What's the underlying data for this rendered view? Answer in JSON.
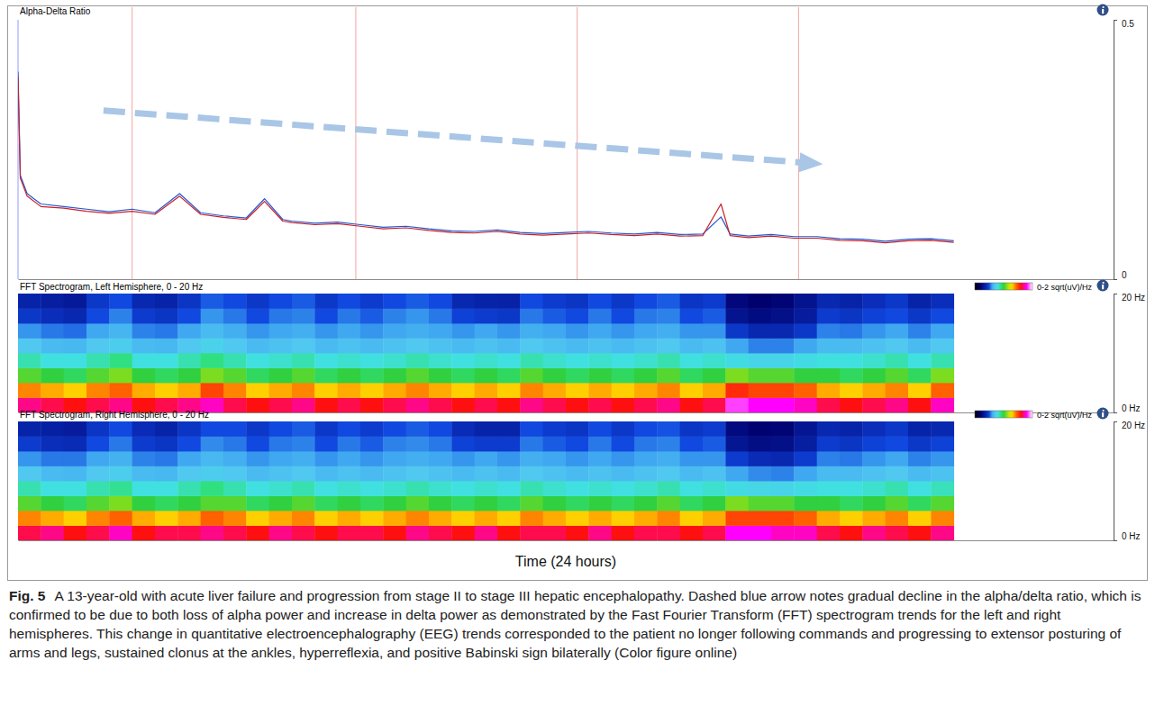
{
  "chart_data": [
    {
      "type": "line",
      "title": "Alpha-Delta Ratio",
      "x": [
        0,
        0.05,
        0.2,
        0.5,
        1,
        1.5,
        2,
        2.5,
        3,
        3.54,
        4,
        4.5,
        5,
        5.4,
        5.8,
        6,
        6.5,
        7,
        7.5,
        8,
        8.5,
        9,
        9.5,
        10,
        10.5,
        11,
        11.5,
        12,
        12.5,
        13,
        13.5,
        14,
        14.5,
        15,
        15.4,
        15.6,
        16,
        16.5,
        17,
        17.5,
        18,
        18.5,
        19,
        19.5,
        20,
        20.5
      ],
      "series": [
        {
          "color": "#2458d0",
          "values": [
            0.4,
            0.2,
            0.165,
            0.145,
            0.14,
            0.135,
            0.13,
            0.135,
            0.128,
            0.165,
            0.128,
            0.122,
            0.118,
            0.155,
            0.115,
            0.112,
            0.108,
            0.11,
            0.105,
            0.1,
            0.102,
            0.097,
            0.093,
            0.092,
            0.095,
            0.09,
            0.088,
            0.09,
            0.092,
            0.089,
            0.087,
            0.09,
            0.086,
            0.087,
            0.12,
            0.087,
            0.083,
            0.086,
            0.082,
            0.082,
            0.078,
            0.077,
            0.073,
            0.077,
            0.078,
            0.074
          ]
        },
        {
          "color": "#c8202a",
          "values": [
            0.39,
            0.195,
            0.16,
            0.14,
            0.137,
            0.131,
            0.127,
            0.131,
            0.125,
            0.16,
            0.125,
            0.119,
            0.115,
            0.15,
            0.112,
            0.109,
            0.105,
            0.107,
            0.102,
            0.097,
            0.099,
            0.094,
            0.09,
            0.089,
            0.092,
            0.087,
            0.085,
            0.087,
            0.089,
            0.086,
            0.084,
            0.087,
            0.083,
            0.084,
            0.145,
            0.084,
            0.08,
            0.083,
            0.079,
            0.079,
            0.075,
            0.074,
            0.07,
            0.074,
            0.075,
            0.071
          ]
        }
      ],
      "xlim": [
        0,
        24
      ],
      "xticks": [
        2.5,
        7.4,
        12.25,
        17.1
      ],
      "ylim": [
        0,
        0.5
      ],
      "yticks": [
        0,
        0.5
      ],
      "grid": true,
      "tick_labels": "y"
    },
    {
      "type": "heatmap",
      "title": "FFT Spectrogram, Left Hemisphere, 0 - 20 Hz",
      "x": [
        0,
        0.5,
        1,
        1.5,
        2,
        2.5,
        3,
        3.5,
        4,
        4.5,
        5,
        5.5,
        6,
        6.5,
        7,
        7.5,
        8,
        8.5,
        9,
        9.5,
        10,
        10.5,
        11,
        11.5,
        12,
        12.5,
        13,
        13.5,
        14,
        14.5,
        15,
        15.5,
        16,
        16.5,
        17,
        17.5,
        18,
        18.5,
        19,
        19.5,
        20,
        20.5
      ],
      "y": [
        0,
        2.5,
        5,
        7.5,
        10,
        12.5,
        15,
        17.5,
        20
      ],
      "z": [
        [
          1.7,
          1.65,
          1.6,
          1.65,
          1.7,
          1.6,
          1.65,
          1.7,
          1.75,
          1.65,
          1.6,
          1.65,
          1.7,
          1.6,
          1.65,
          1.6,
          1.65,
          1.7,
          1.65,
          1.6,
          1.65,
          1.6,
          1.7,
          1.65,
          1.6,
          1.65,
          1.6,
          1.65,
          1.7,
          1.6,
          1.65,
          1.85,
          1.8,
          1.8,
          1.75,
          1.65,
          1.6,
          1.65,
          1.7,
          1.6,
          1.75
        ],
        [
          1.4,
          1.35,
          1.3,
          1.4,
          1.45,
          1.35,
          1.3,
          1.35,
          1.5,
          1.4,
          1.3,
          1.35,
          1.4,
          1.3,
          1.35,
          1.3,
          1.35,
          1.4,
          1.35,
          1.3,
          1.35,
          1.3,
          1.4,
          1.35,
          1.3,
          1.35,
          1.3,
          1.35,
          1.4,
          1.3,
          1.35,
          1.55,
          1.5,
          1.5,
          1.45,
          1.35,
          1.3,
          1.35,
          1.4,
          1.3,
          1.45
        ],
        [
          1.05,
          1.0,
          0.95,
          1.05,
          1.1,
          1.0,
          0.95,
          1.0,
          1.1,
          1.05,
          0.95,
          1.0,
          1.05,
          0.95,
          1.0,
          0.95,
          1.0,
          1.05,
          1.0,
          0.95,
          1.0,
          0.95,
          1.05,
          1.0,
          0.95,
          1.0,
          0.95,
          1.0,
          1.05,
          0.95,
          1.0,
          1.1,
          1.05,
          1.05,
          1.0,
          1.0,
          0.95,
          1.0,
          1.05,
          0.95,
          1.1
        ],
        [
          0.85,
          0.8,
          0.8,
          0.85,
          0.9,
          0.8,
          0.8,
          0.85,
          0.9,
          0.85,
          0.8,
          0.82,
          0.85,
          0.8,
          0.82,
          0.8,
          0.82,
          0.85,
          0.82,
          0.8,
          0.82,
          0.8,
          0.85,
          0.82,
          0.8,
          0.82,
          0.8,
          0.82,
          0.85,
          0.8,
          0.82,
          0.78,
          0.75,
          0.75,
          0.78,
          0.8,
          0.8,
          0.82,
          0.85,
          0.8,
          0.85
        ],
        [
          0.7,
          0.66,
          0.65,
          0.7,
          0.72,
          0.66,
          0.65,
          0.7,
          0.74,
          0.7,
          0.66,
          0.68,
          0.7,
          0.66,
          0.68,
          0.66,
          0.68,
          0.7,
          0.68,
          0.66,
          0.68,
          0.66,
          0.7,
          0.68,
          0.66,
          0.68,
          0.66,
          0.68,
          0.7,
          0.66,
          0.68,
          0.6,
          0.56,
          0.56,
          0.6,
          0.66,
          0.66,
          0.68,
          0.7,
          0.66,
          0.7
        ],
        [
          0.58,
          0.55,
          0.54,
          0.6,
          0.64,
          0.56,
          0.55,
          0.6,
          0.66,
          0.62,
          0.58,
          0.6,
          0.62,
          0.58,
          0.6,
          0.58,
          0.6,
          0.62,
          0.6,
          0.58,
          0.6,
          0.58,
          0.62,
          0.6,
          0.58,
          0.6,
          0.58,
          0.6,
          0.62,
          0.58,
          0.58,
          0.45,
          0.4,
          0.4,
          0.45,
          0.56,
          0.55,
          0.58,
          0.6,
          0.56,
          0.6
        ],
        [
          0.45,
          0.42,
          0.4,
          0.5,
          0.56,
          0.46,
          0.44,
          0.5,
          0.58,
          0.55,
          0.5,
          0.55,
          0.56,
          0.5,
          0.55,
          0.52,
          0.56,
          0.58,
          0.55,
          0.48,
          0.46,
          0.45,
          0.55,
          0.52,
          0.5,
          0.55,
          0.5,
          0.55,
          0.56,
          0.5,
          0.52,
          0.3,
          0.26,
          0.28,
          0.34,
          0.46,
          0.44,
          0.48,
          0.5,
          0.45,
          0.5
        ],
        [
          0.38,
          0.35,
          0.33,
          0.45,
          0.5,
          0.4,
          0.38,
          0.44,
          0.52,
          0.5,
          0.45,
          0.5,
          0.52,
          0.45,
          0.5,
          0.46,
          0.5,
          0.52,
          0.5,
          0.4,
          0.38,
          0.37,
          0.5,
          0.46,
          0.44,
          0.5,
          0.45,
          0.5,
          0.52,
          0.44,
          0.46,
          0.24,
          0.2,
          0.22,
          0.3,
          0.4,
          0.38,
          0.42,
          0.45,
          0.38,
          0.42
        ]
      ],
      "xlim": [
        0,
        24
      ],
      "ylim": [
        0,
        20
      ],
      "yticks": [
        {
          "value": 0,
          "label": "0 Hz"
        },
        {
          "value": 20,
          "label": "20 Hz"
        }
      ],
      "colorbar": {
        "range": [
          0,
          2
        ],
        "label": "0-2 sqrt(uV)/Hz"
      },
      "tick_labels": "y"
    },
    {
      "type": "heatmap",
      "title": "FFT Spectrogram, Right Hemisphere, 0 - 20 Hz",
      "x": [
        0,
        0.5,
        1,
        1.5,
        2,
        2.5,
        3,
        3.5,
        4,
        4.5,
        5,
        5.5,
        6,
        6.5,
        7,
        7.5,
        8,
        8.5,
        9,
        9.5,
        10,
        10.5,
        11,
        11.5,
        12,
        12.5,
        13,
        13.5,
        14,
        14.5,
        15,
        15.5,
        16,
        16.5,
        17,
        17.5,
        18,
        18.5,
        19,
        19.5,
        20,
        20.5
      ],
      "y": [
        0,
        2.5,
        5,
        7.5,
        10,
        12.5,
        15,
        17.5,
        20
      ],
      "z": [
        [
          1.65,
          1.7,
          1.6,
          1.65,
          1.75,
          1.6,
          1.65,
          1.65,
          1.7,
          1.65,
          1.6,
          1.7,
          1.65,
          1.6,
          1.65,
          1.65,
          1.6,
          1.7,
          1.65,
          1.6,
          1.7,
          1.6,
          1.65,
          1.65,
          1.6,
          1.7,
          1.6,
          1.65,
          1.65,
          1.6,
          1.65,
          1.8,
          1.8,
          1.75,
          1.75,
          1.65,
          1.6,
          1.7,
          1.65,
          1.6,
          1.7
        ],
        [
          1.4,
          1.35,
          1.3,
          1.4,
          1.45,
          1.35,
          1.3,
          1.35,
          1.45,
          1.4,
          1.3,
          1.35,
          1.4,
          1.3,
          1.35,
          1.3,
          1.35,
          1.4,
          1.35,
          1.3,
          1.35,
          1.3,
          1.4,
          1.35,
          1.3,
          1.35,
          1.3,
          1.35,
          1.4,
          1.3,
          1.35,
          1.5,
          1.5,
          1.5,
          1.45,
          1.35,
          1.3,
          1.35,
          1.4,
          1.3,
          1.4
        ],
        [
          1.05,
          1.0,
          0.95,
          1.05,
          1.1,
          1.0,
          0.95,
          1.0,
          1.05,
          1.05,
          0.95,
          1.0,
          1.05,
          0.95,
          1.0,
          0.95,
          1.0,
          1.05,
          1.0,
          0.95,
          1.0,
          0.95,
          1.05,
          1.0,
          0.95,
          1.0,
          0.95,
          1.0,
          1.05,
          0.95,
          1.0,
          1.1,
          1.05,
          1.05,
          1.0,
          1.0,
          0.95,
          1.0,
          1.05,
          0.95,
          1.05
        ],
        [
          0.85,
          0.8,
          0.8,
          0.85,
          0.88,
          0.8,
          0.8,
          0.85,
          0.9,
          0.85,
          0.8,
          0.82,
          0.85,
          0.8,
          0.82,
          0.8,
          0.82,
          0.85,
          0.82,
          0.8,
          0.82,
          0.8,
          0.85,
          0.82,
          0.8,
          0.82,
          0.8,
          0.82,
          0.85,
          0.8,
          0.82,
          0.78,
          0.76,
          0.75,
          0.78,
          0.8,
          0.8,
          0.82,
          0.85,
          0.8,
          0.84
        ],
        [
          0.7,
          0.66,
          0.65,
          0.7,
          0.72,
          0.66,
          0.65,
          0.7,
          0.72,
          0.7,
          0.66,
          0.68,
          0.7,
          0.66,
          0.68,
          0.66,
          0.68,
          0.7,
          0.68,
          0.66,
          0.68,
          0.66,
          0.7,
          0.68,
          0.66,
          0.68,
          0.66,
          0.68,
          0.7,
          0.66,
          0.68,
          0.6,
          0.57,
          0.56,
          0.6,
          0.66,
          0.66,
          0.68,
          0.7,
          0.66,
          0.68
        ],
        [
          0.58,
          0.55,
          0.55,
          0.6,
          0.63,
          0.56,
          0.55,
          0.6,
          0.65,
          0.62,
          0.58,
          0.6,
          0.62,
          0.58,
          0.6,
          0.58,
          0.6,
          0.62,
          0.6,
          0.58,
          0.6,
          0.58,
          0.62,
          0.6,
          0.58,
          0.6,
          0.58,
          0.6,
          0.62,
          0.58,
          0.58,
          0.46,
          0.41,
          0.4,
          0.46,
          0.56,
          0.55,
          0.58,
          0.6,
          0.56,
          0.58
        ],
        [
          0.46,
          0.42,
          0.41,
          0.5,
          0.55,
          0.46,
          0.44,
          0.5,
          0.57,
          0.55,
          0.5,
          0.55,
          0.56,
          0.5,
          0.55,
          0.52,
          0.56,
          0.57,
          0.55,
          0.48,
          0.46,
          0.46,
          0.55,
          0.52,
          0.5,
          0.55,
          0.5,
          0.55,
          0.56,
          0.5,
          0.52,
          0.31,
          0.27,
          0.28,
          0.35,
          0.46,
          0.44,
          0.48,
          0.5,
          0.45,
          0.48
        ],
        [
          0.38,
          0.36,
          0.34,
          0.44,
          0.5,
          0.41,
          0.38,
          0.44,
          0.5,
          0.5,
          0.45,
          0.5,
          0.52,
          0.45,
          0.5,
          0.46,
          0.5,
          0.52,
          0.5,
          0.41,
          0.38,
          0.38,
          0.5,
          0.46,
          0.44,
          0.5,
          0.45,
          0.5,
          0.51,
          0.44,
          0.46,
          0.25,
          0.21,
          0.22,
          0.31,
          0.4,
          0.38,
          0.42,
          0.45,
          0.38,
          0.4
        ]
      ],
      "xlim": [
        0,
        24
      ],
      "ylim": [
        0,
        20
      ],
      "yticks": [
        {
          "value": 0,
          "label": "0 Hz"
        },
        {
          "value": 20,
          "label": "20 Hz"
        }
      ],
      "colorbar": {
        "range": [
          0,
          2
        ],
        "label": "0-2 sqrt(uV)/Hz"
      },
      "xlabel": "Time (24 hours)",
      "tick_labels": "y"
    }
  ],
  "caption": {
    "label": "Fig. 5",
    "text": "A 13-year-old with acute liver failure and progression from stage II to stage III hepatic encephalopathy. Dashed blue arrow notes gradual decline in the alpha/delta ratio, which is confirmed to be due to both loss of alpha power and increase in delta power as demonstrated by the Fast Fourier Transform (FFT) spectrogram trends for the left and right hemispheres. This change in quantitative electroencephalography (EEG) trends corresponded to the patient no longer following commands and progressing to extensor posturing of arms and legs, sustained clonus at the ankles, hyperreflexia, and positive Babinski sign bilaterally (Color figure online)"
  }
}
